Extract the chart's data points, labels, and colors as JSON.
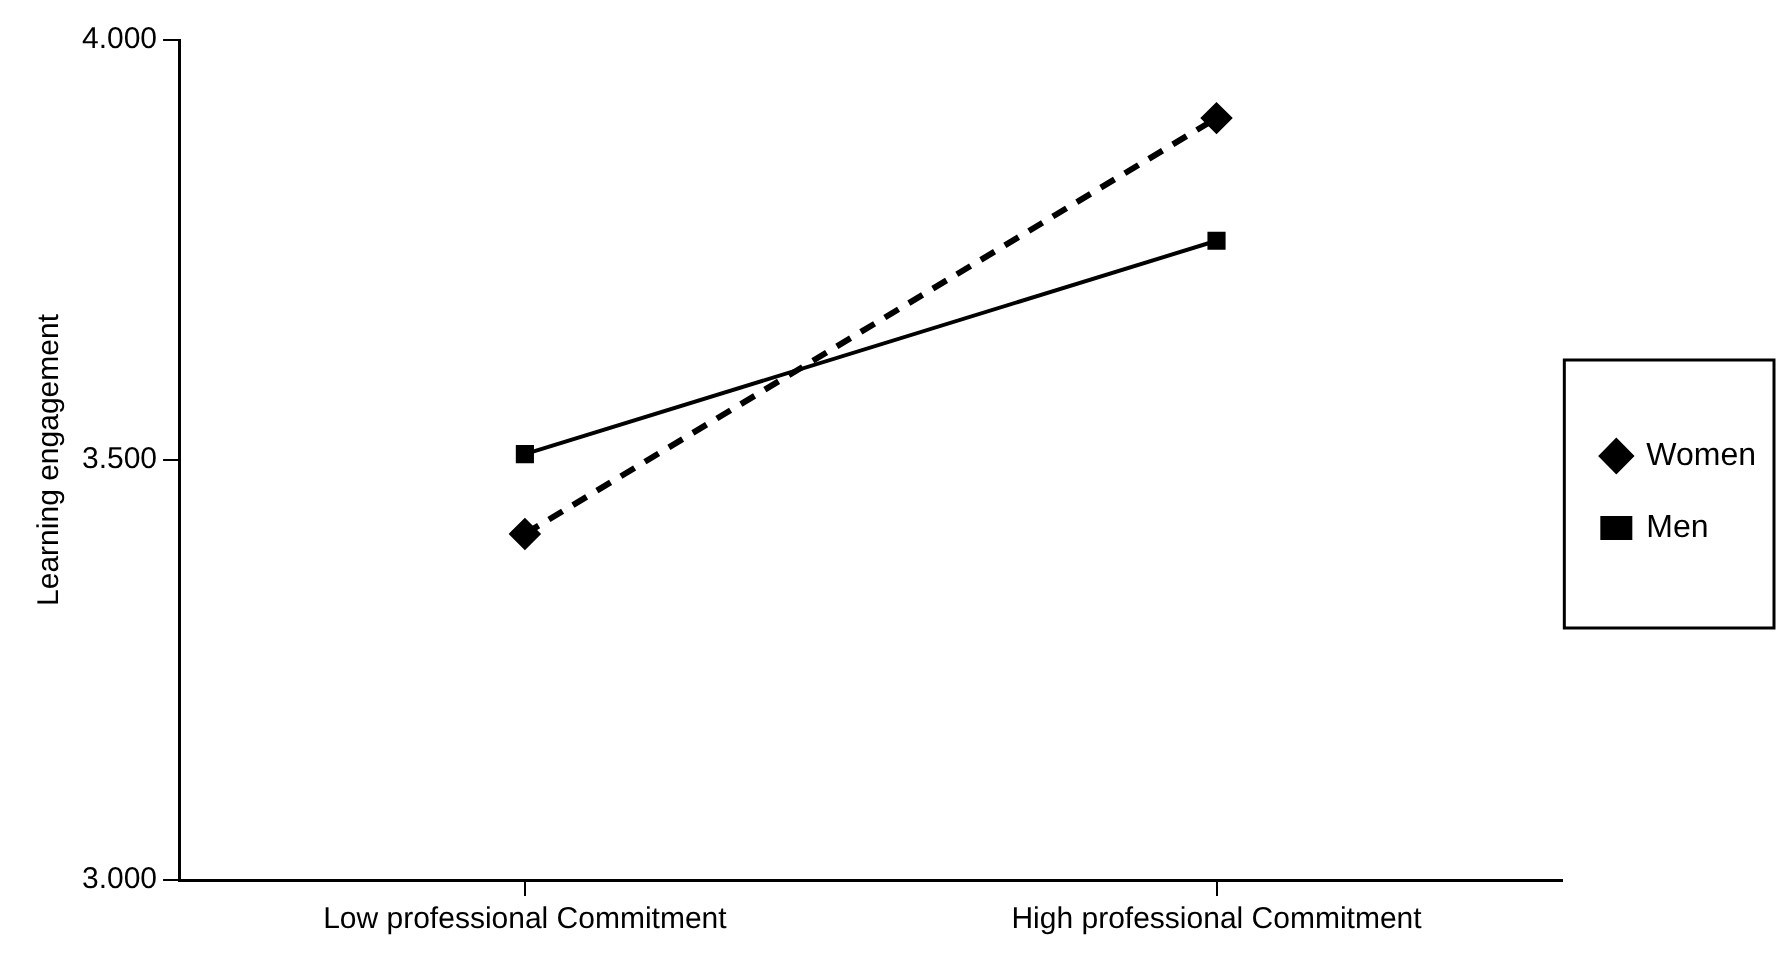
{
  "chart_data": {
    "type": "line",
    "ylabel": "Learning engagement",
    "categories": [
      "Low professional Commitment",
      "High professional Commitment"
    ],
    "series": [
      {
        "name": "Women",
        "color": "#000000",
        "values": [
          3.412,
          3.907
        ],
        "marker": "diamond",
        "line_style": "dashed"
      },
      {
        "name": "Men",
        "color": "#000000",
        "values": [
          3.507,
          3.761
        ],
        "marker": "square",
        "line_style": "solid"
      }
    ],
    "ylim": [
      3,
      4
    ],
    "yticks": [
      {
        "value": 3,
        "label": "3.000"
      },
      {
        "value": 3.5,
        "label": "3.500"
      },
      {
        "value": 4,
        "label": "4.000"
      }
    ],
    "grid": false,
    "legend": "right"
  }
}
